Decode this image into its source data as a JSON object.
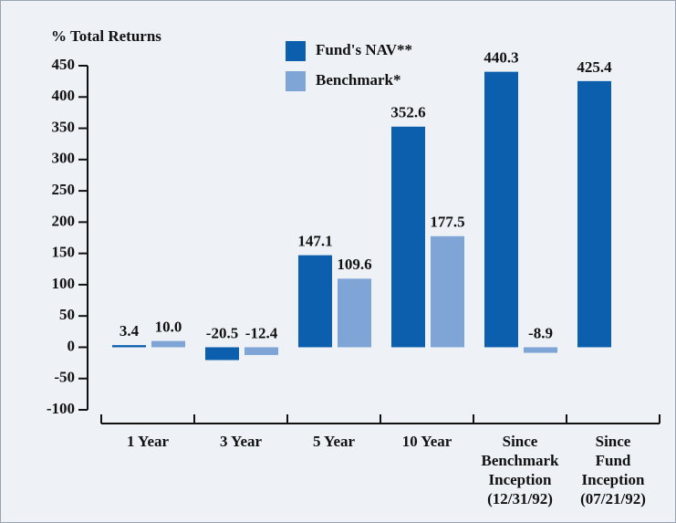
{
  "chart_data": {
    "type": "bar",
    "y_label": "% Total Returns",
    "categories": [
      "1 Year",
      "3 Year",
      "5 Year",
      "10 Year",
      "Since\nBenchmark\nInception\n(12/31/92)",
      "Since\nFund\nInception\n(07/21/92)"
    ],
    "series": [
      {
        "name": "Fund's NAV**",
        "color": "#0b5fad",
        "values": [
          3.4,
          -20.5,
          147.1,
          352.6,
          440.3,
          425.4
        ],
        "value_labels": [
          "3.4",
          "-20.5",
          "147.1",
          "352.6",
          "440.3",
          "425.4"
        ]
      },
      {
        "name": "Benchmark*",
        "color": "#7ea5d6",
        "values": [
          10.0,
          -12.4,
          109.6,
          177.5,
          -8.9,
          null
        ],
        "value_labels": [
          "10.0",
          "-12.4",
          "109.6",
          "177.5",
          "-8.9",
          null
        ]
      }
    ],
    "ylim": [
      -100,
      450
    ],
    "yticks": [
      -100,
      -50,
      0,
      50,
      100,
      150,
      200,
      250,
      300,
      350,
      400,
      450
    ],
    "legend": "top"
  }
}
